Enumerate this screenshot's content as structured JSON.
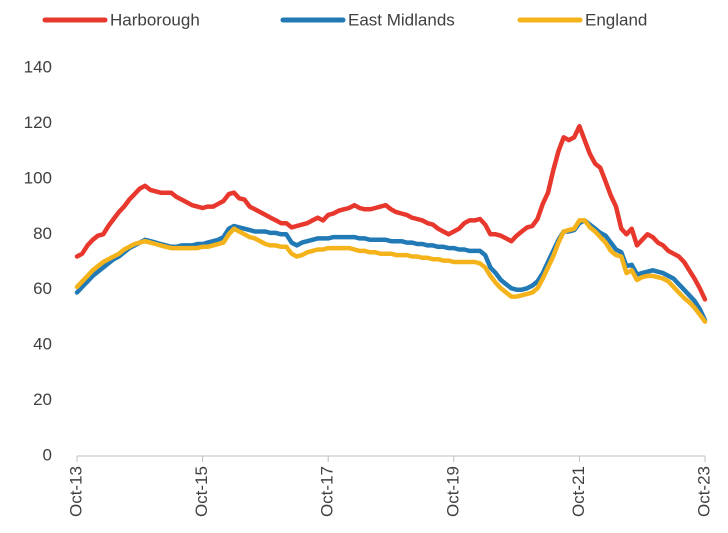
{
  "chart_data": {
    "type": "line",
    "categories": [
      "Oct-13",
      null,
      null,
      null,
      null,
      null,
      null,
      null,
      null,
      null,
      null,
      null,
      null,
      null,
      null,
      null,
      null,
      null,
      null,
      null,
      null,
      null,
      null,
      null,
      "Oct-15",
      null,
      null,
      null,
      null,
      null,
      null,
      null,
      null,
      null,
      null,
      null,
      null,
      null,
      null,
      null,
      null,
      null,
      null,
      null,
      null,
      null,
      null,
      null,
      "Oct-17",
      null,
      null,
      null,
      null,
      null,
      null,
      null,
      null,
      null,
      null,
      null,
      null,
      null,
      null,
      null,
      null,
      null,
      null,
      null,
      null,
      null,
      null,
      null,
      "Oct-19",
      null,
      null,
      null,
      null,
      null,
      null,
      null,
      null,
      null,
      null,
      null,
      null,
      null,
      null,
      null,
      null,
      null,
      null,
      null,
      null,
      null,
      null,
      null,
      "Oct-21",
      null,
      null,
      null,
      null,
      null,
      null,
      null,
      null,
      null,
      null,
      null,
      null,
      null,
      null,
      null,
      null,
      null,
      null,
      null,
      null,
      null,
      null,
      null,
      "Oct-23"
    ],
    "series": [
      {
        "name": "Harborough",
        "color": "#e8382d",
        "values": [
          72,
          73,
          76,
          78,
          79.5,
          80,
          83,
          85.5,
          88,
          90,
          92.5,
          94.5,
          96.5,
          97.5,
          96,
          95.5,
          95,
          95,
          95,
          93.5,
          92.5,
          91.5,
          90.5,
          90,
          89.5,
          90,
          90,
          91,
          92,
          94.5,
          95,
          93,
          92.5,
          90,
          89,
          88,
          87,
          86,
          85,
          84,
          84,
          82.5,
          83,
          83.5,
          84,
          85,
          86,
          85,
          87,
          87.5,
          88.5,
          89,
          89.5,
          90.5,
          89.5,
          89,
          89,
          89.5,
          90,
          90.5,
          89,
          88,
          87.5,
          87,
          86,
          85.5,
          85,
          84,
          83.5,
          82,
          81,
          80,
          81,
          82,
          84,
          85,
          85,
          85.5,
          83.5,
          80,
          80,
          79.5,
          78.5,
          77.5,
          79.5,
          81,
          82.5,
          83,
          85.5,
          91,
          95,
          103,
          110,
          115,
          114,
          115,
          119,
          114,
          109,
          105.5,
          104,
          99,
          94,
          90,
          82,
          80,
          82,
          76,
          78,
          80,
          79,
          77,
          76,
          74,
          73,
          72,
          70,
          67,
          64,
          60.5,
          56.5
        ]
      },
      {
        "name": "East Midlands",
        "color": "#2179b5",
        "values": [
          59,
          61,
          63,
          65,
          66.5,
          68,
          69.5,
          71,
          72,
          73.5,
          75,
          76,
          77,
          78,
          77.5,
          77,
          76.5,
          76,
          75.5,
          75.5,
          76,
          76,
          76,
          76.5,
          76.5,
          77,
          77.5,
          78,
          79,
          82,
          83,
          82.5,
          82,
          81.5,
          81,
          81,
          81,
          80.5,
          80.5,
          80,
          80,
          77,
          76,
          77,
          77.5,
          78,
          78.5,
          78.5,
          78.5,
          79,
          79,
          79,
          79,
          79,
          78.5,
          78.5,
          78,
          78,
          78,
          78,
          77.5,
          77.5,
          77.5,
          77,
          77,
          76.5,
          76.5,
          76,
          76,
          75.5,
          75.5,
          75,
          75,
          74.5,
          74.5,
          74,
          74,
          74,
          72.5,
          68,
          66,
          63.5,
          62,
          60.5,
          60,
          60,
          60.5,
          61.5,
          63,
          66,
          70,
          74,
          78,
          81,
          81,
          81.5,
          84,
          85,
          83.5,
          82,
          80.5,
          79.5,
          77,
          74.5,
          73.5,
          68.5,
          69,
          65.5,
          66,
          66.5,
          67,
          66.5,
          66,
          65,
          64,
          62,
          60,
          58,
          56,
          53,
          49
        ]
      },
      {
        "name": "England",
        "color": "#f5b31b",
        "values": [
          61,
          63,
          65,
          67,
          68.5,
          70,
          71,
          72,
          73,
          74.5,
          75.5,
          76.5,
          77,
          77.5,
          77,
          76.5,
          76,
          75.5,
          75,
          75,
          75,
          75,
          75,
          75,
          75.5,
          75.5,
          76,
          76.5,
          77,
          80,
          82,
          81,
          80,
          79,
          78.5,
          77.5,
          76.5,
          76,
          76,
          75.5,
          75.5,
          73,
          72,
          72.5,
          73.5,
          74,
          74.5,
          74.5,
          75,
          75,
          75,
          75,
          75,
          74.5,
          74,
          74,
          73.5,
          73.5,
          73,
          73,
          73,
          72.5,
          72.5,
          72.5,
          72,
          72,
          71.5,
          71.5,
          71,
          71,
          70.5,
          70.5,
          70,
          70,
          70,
          70,
          70,
          69.5,
          68,
          65,
          62.5,
          60.5,
          59,
          57.5,
          57.5,
          58,
          58.5,
          59,
          60.5,
          64,
          68,
          72,
          77,
          81,
          81.5,
          82,
          85,
          85,
          82.5,
          81,
          79,
          77,
          74,
          72.5,
          72,
          66,
          67,
          63.5,
          64.5,
          65,
          65,
          64.5,
          64,
          63,
          61,
          59,
          57,
          55.5,
          53.5,
          51,
          48.5
        ]
      }
    ],
    "ylim": [
      0,
      140
    ],
    "yticks": [
      0,
      20,
      40,
      60,
      80,
      100,
      120,
      140
    ],
    "grid": false,
    "legend": "top"
  }
}
